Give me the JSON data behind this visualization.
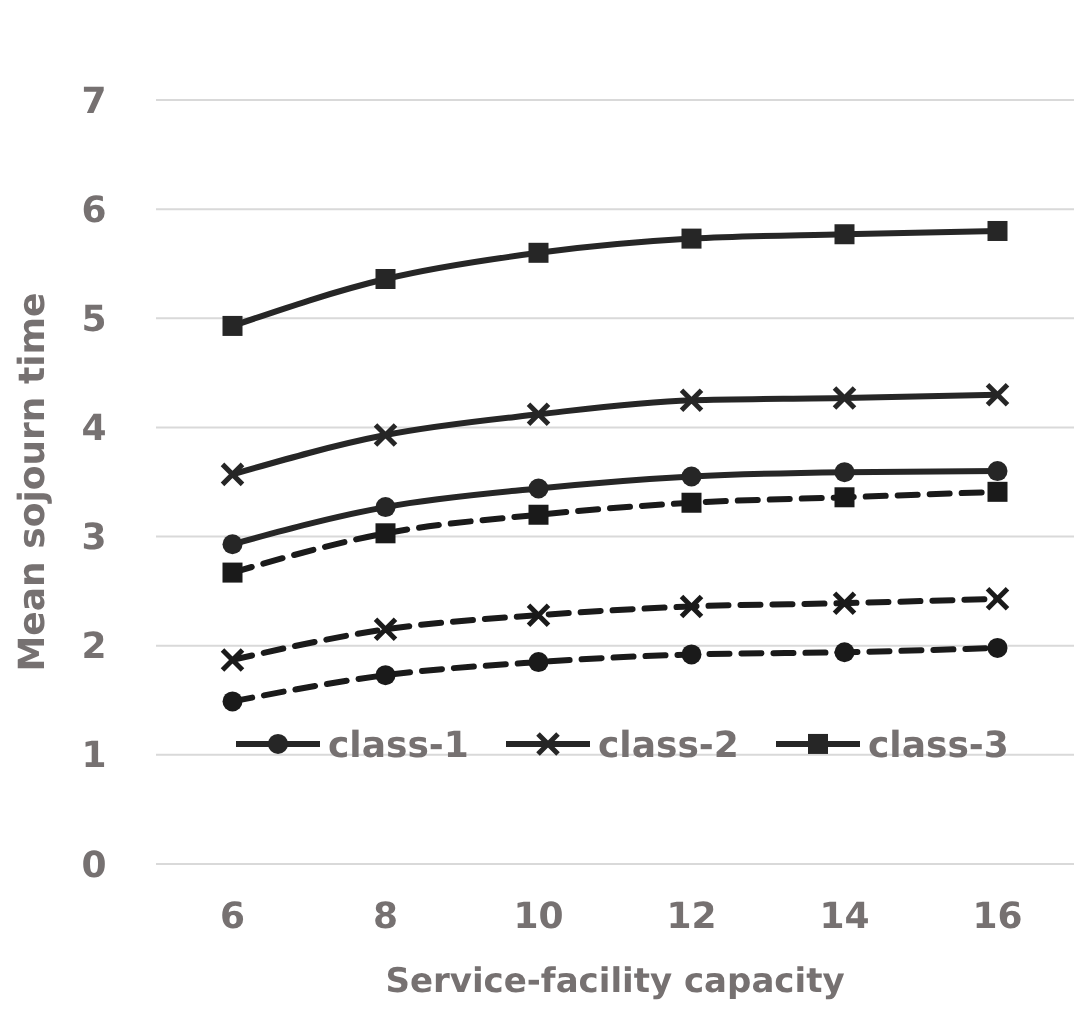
{
  "chart_data": {
    "type": "line",
    "xlabel": "Service-facility capacity",
    "ylabel": "Mean sojourn time",
    "categories": [
      "6",
      "8",
      "10",
      "12",
      "14",
      "16"
    ],
    "series": [
      {
        "name": "class-1",
        "color": "#262626",
        "marker": "circle",
        "line_style": "solid",
        "values": [
          2.93,
          3.27,
          3.44,
          3.55,
          3.59,
          3.6
        ]
      },
      {
        "name": "class-2",
        "color": "#262626",
        "marker": "cross",
        "line_style": "solid",
        "values": [
          3.57,
          3.93,
          4.12,
          4.25,
          4.27,
          4.3
        ]
      },
      {
        "name": "class-3",
        "color": "#262626",
        "marker": "square",
        "line_style": "solid",
        "values": [
          4.93,
          5.36,
          5.6,
          5.73,
          5.77,
          5.8
        ]
      },
      {
        "color": "#1a1a1a",
        "marker": "circle",
        "line_style": "dashed",
        "values": [
          1.49,
          1.73,
          1.85,
          1.92,
          1.94,
          1.98
        ]
      },
      {
        "color": "#1a1a1a",
        "marker": "cross",
        "line_style": "dashed",
        "values": [
          1.87,
          2.15,
          2.28,
          2.36,
          2.39,
          2.43
        ]
      },
      {
        "color": "#1a1a1a",
        "marker": "square",
        "line_style": "dashed",
        "values": [
          2.67,
          3.03,
          3.2,
          3.31,
          3.36,
          3.41
        ]
      }
    ],
    "ylim": [
      0,
      7
    ],
    "yticks": [
      0,
      1,
      2,
      3,
      4,
      5,
      6,
      7
    ],
    "grid": "y",
    "legend": "bottom"
  }
}
